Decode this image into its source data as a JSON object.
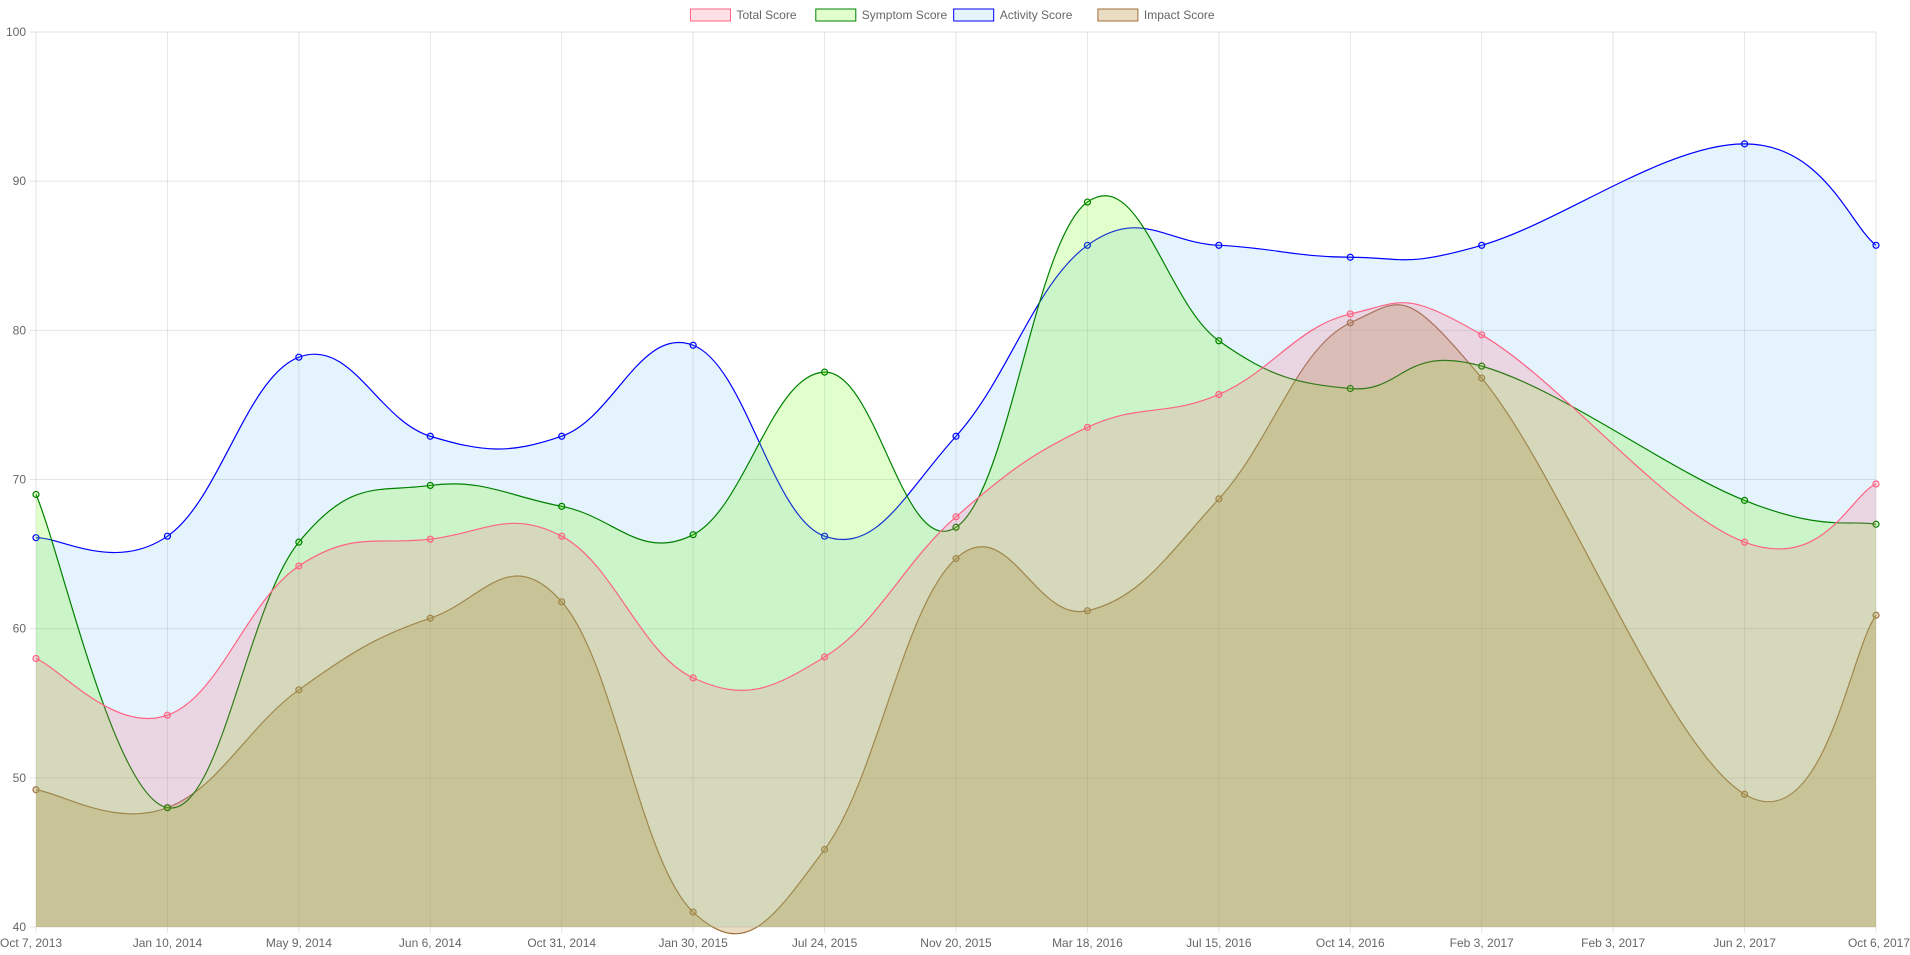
{
  "chart_data": {
    "type": "area",
    "x": [
      "Oct 7, 2013",
      "Jan 10, 2014",
      "May 9, 2014",
      "Jun 6, 2014",
      "Oct 31, 2014",
      "Jan 30, 2015",
      "Jul 24, 2015",
      "Nov 20, 2015",
      "Mar 18, 2016",
      "Jul 15, 2016",
      "Oct 14, 2016",
      "Feb 3, 2017",
      "Feb 3, 2017",
      "Jun 2, 2017",
      "Oct 6, 2017"
    ],
    "ylim": [
      40,
      100
    ],
    "yticks": [
      40,
      50,
      60,
      70,
      80,
      90,
      100
    ],
    "grid": true,
    "legend_position": "top",
    "series": [
      {
        "name": "Total Score",
        "color": "#ff6384",
        "fill": "rgba(255,99,132,0.2)",
        "values": [
          58.0,
          54.2,
          64.2,
          66.0,
          66.2,
          56.7,
          58.1,
          67.5,
          73.5,
          75.7,
          81.1,
          79.7,
          null,
          65.8,
          69.7
        ]
      },
      {
        "name": "Symptom Score",
        "color": "#008000",
        "fill": "rgba(102,255,0,0.2)",
        "values": [
          69.0,
          48.0,
          65.8,
          69.6,
          68.2,
          66.3,
          77.2,
          66.8,
          88.6,
          79.3,
          76.1,
          77.6,
          null,
          68.6,
          67.0
        ]
      },
      {
        "name": "Activity Score",
        "color": "#0000ff",
        "fill": "rgba(54,162,235,0.13)",
        "values": [
          66.1,
          66.2,
          78.2,
          72.9,
          72.9,
          79.0,
          66.2,
          72.9,
          85.7,
          85.7,
          84.9,
          85.7,
          null,
          92.5,
          85.7
        ]
      },
      {
        "name": "Impact Score",
        "color": "#a0703c",
        "fill": "rgba(190,150,70,0.33)",
        "values": [
          49.2,
          48.0,
          55.9,
          60.7,
          61.8,
          41.0,
          45.2,
          64.7,
          61.2,
          68.7,
          80.5,
          76.8,
          null,
          48.9,
          60.9
        ]
      }
    ]
  }
}
